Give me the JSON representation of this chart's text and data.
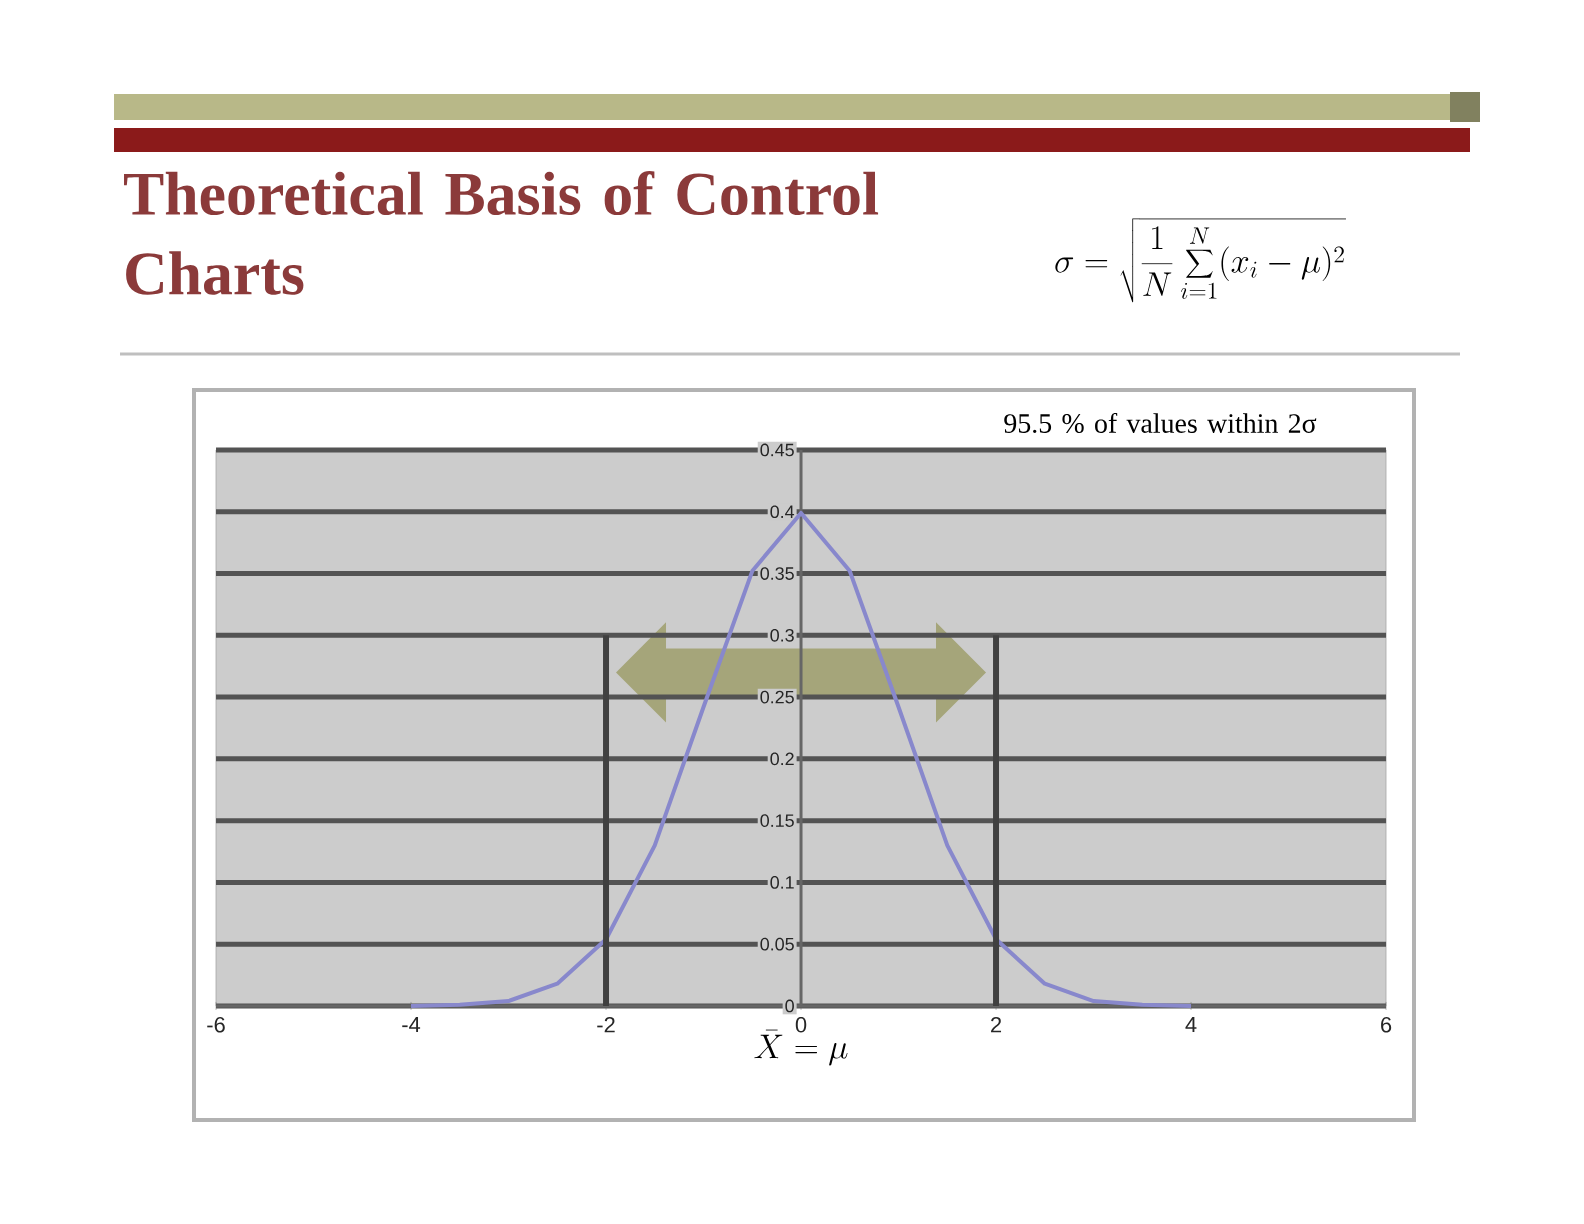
{
  "chart_data": {
    "type": "line",
    "title": "Theoretical Basis of Control Charts",
    "xlabel": "\\bar{X} = \\mu",
    "annotations": [
      "\\sigma = \\sqrt{\\frac{1}{N}\\sum_{i=1}^{N}(x_i-\\mu)^2}",
      "95.5 % of values within 2σ"
    ],
    "xlim": [
      -6,
      6
    ],
    "xticks": [
      -6,
      -4,
      -2,
      0,
      2,
      4,
      6
    ],
    "ylim": [
      0,
      0.45
    ],
    "yticks": [
      0,
      0.05,
      0.1,
      0.15,
      0.2,
      0.25,
      0.3,
      0.35,
      0.4,
      0.45
    ],
    "grid": "y",
    "series": [
      {
        "color": "#8888cc",
        "x": [
          -4,
          -3.5,
          -3,
          -2.5,
          -2,
          -1.5,
          -1,
          -0.5,
          0,
          0.5,
          1,
          1.5,
          2,
          2.5,
          3,
          3.5,
          4
        ],
        "values": [
          0.0,
          0.001,
          0.004,
          0.018,
          0.054,
          0.13,
          0.242,
          0.352,
          0.399,
          0.352,
          0.242,
          0.13,
          0.054,
          0.018,
          0.004,
          0.001,
          0.0
        ]
      },
      {
        "color": "#404040",
        "x": [
          -2,
          -2
        ],
        "values": [
          0,
          0.3
        ]
      },
      {
        "color": "#404040",
        "x": [
          2,
          2
        ],
        "values": [
          0,
          0.3
        ]
      }
    ]
  }
}
